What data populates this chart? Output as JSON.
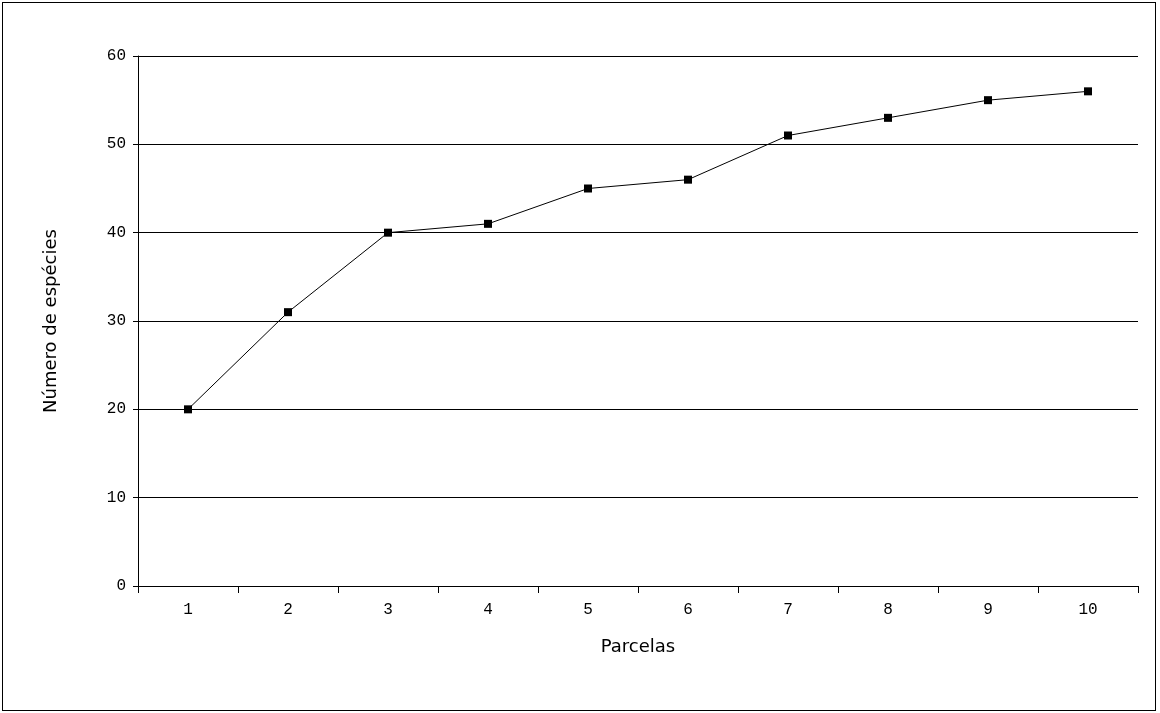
{
  "chart_data": {
    "type": "line",
    "xlabel": "Parcelas",
    "ylabel": "Número de espécies",
    "categories": [
      "1",
      "2",
      "3",
      "4",
      "5",
      "6",
      "7",
      "8",
      "9",
      "10"
    ],
    "series": [
      {
        "color": "#000000",
        "values": [
          20,
          31,
          40,
          41,
          45,
          46,
          51,
          53,
          55,
          56
        ]
      }
    ],
    "ylim": [
      0,
      60
    ],
    "yticks": [
      0,
      10,
      20,
      30,
      40,
      50,
      60
    ],
    "grid": "y",
    "marker": "square",
    "line_style": "solid"
  }
}
